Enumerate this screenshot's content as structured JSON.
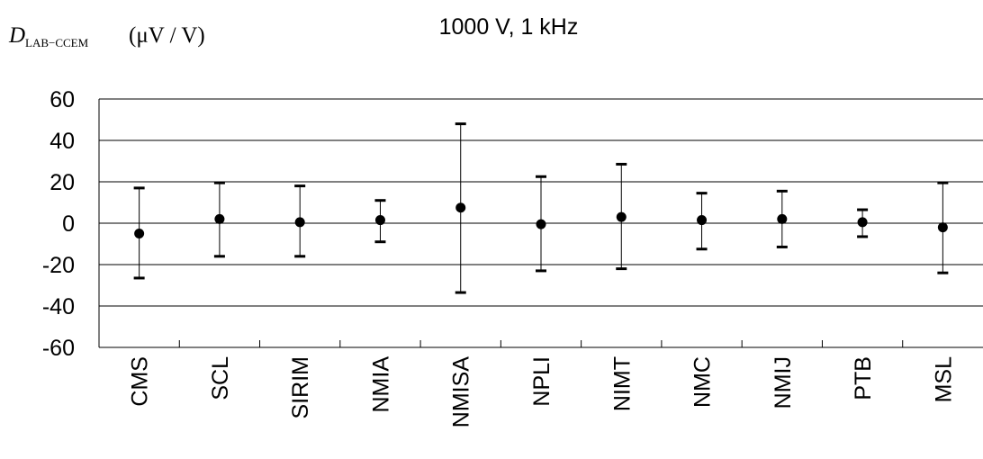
{
  "chart_data": {
    "type": "scatter",
    "title": "1000 V, 1 kHz",
    "ylabel": {
      "var": "D",
      "sub": "LAB−CCEM",
      "unit": "(μV / V)"
    },
    "xlabel": "",
    "ylim": [
      -60,
      60
    ],
    "yticks": [
      {
        "value": 60,
        "label": "60"
      },
      {
        "value": 40,
        "label": "40"
      },
      {
        "value": 20,
        "label": "20"
      },
      {
        "value": 0,
        "label": "0"
      },
      {
        "value": -20,
        "label": "-20"
      },
      {
        "value": -40,
        "label": "-40"
      },
      {
        "value": -60,
        "label": "-60"
      }
    ],
    "grid": true,
    "categories": [
      "CMS",
      "SCL",
      "SIRIM",
      "NMIA",
      "NMISA",
      "NPLI",
      "NIMT",
      "NMC",
      "NMIJ",
      "PTB",
      "MSL"
    ],
    "series": [
      {
        "values": [
          -5,
          2,
          0.5,
          1.5,
          7.5,
          -0.5,
          3,
          1.5,
          2,
          0.5,
          -2
        ],
        "error_high": [
          17,
          19.5,
          18,
          11,
          48,
          22.5,
          28.5,
          14.5,
          15.5,
          6.5,
          19.5
        ],
        "error_low": [
          -26.5,
          -16,
          -16,
          -9,
          -33.5,
          -23,
          -22,
          -12.5,
          -11.5,
          -6.5,
          -24
        ],
        "color": "#000000"
      }
    ]
  }
}
